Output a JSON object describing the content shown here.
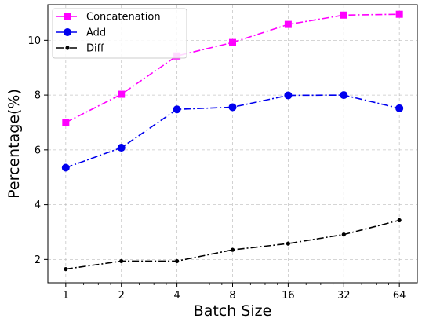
{
  "chart_data": {
    "type": "line",
    "title": "",
    "xlabel": "Batch Size",
    "ylabel": "Percentage(%)",
    "x_scale": "log2",
    "categories": [
      "1",
      "2",
      "4",
      "8",
      "16",
      "32",
      "64"
    ],
    "x": [
      1,
      2,
      4,
      8,
      16,
      32,
      64
    ],
    "xlim": [
      0.8,
      80
    ],
    "ylim": [
      1.15,
      11.3
    ],
    "yticks": [
      2,
      4,
      6,
      8,
      10
    ],
    "grid": true,
    "legend_position": "top-left",
    "series": [
      {
        "name": "Concatenation",
        "values": [
          7.0,
          8.03,
          9.43,
          9.92,
          10.58,
          10.92,
          10.95
        ],
        "color": "#ff00ff",
        "marker": "square",
        "line_style": "dash-dot"
      },
      {
        "name": "Add",
        "values": [
          5.35,
          6.08,
          7.48,
          7.56,
          7.99,
          8.0,
          7.52
        ],
        "color": "#0000ee",
        "marker": "circle",
        "line_style": "dash-dot"
      },
      {
        "name": "Diff",
        "values": [
          1.65,
          1.94,
          1.94,
          2.35,
          2.58,
          2.91,
          3.43
        ],
        "color": "#000000",
        "marker": "dot",
        "line_style": "dash-dot"
      }
    ]
  }
}
